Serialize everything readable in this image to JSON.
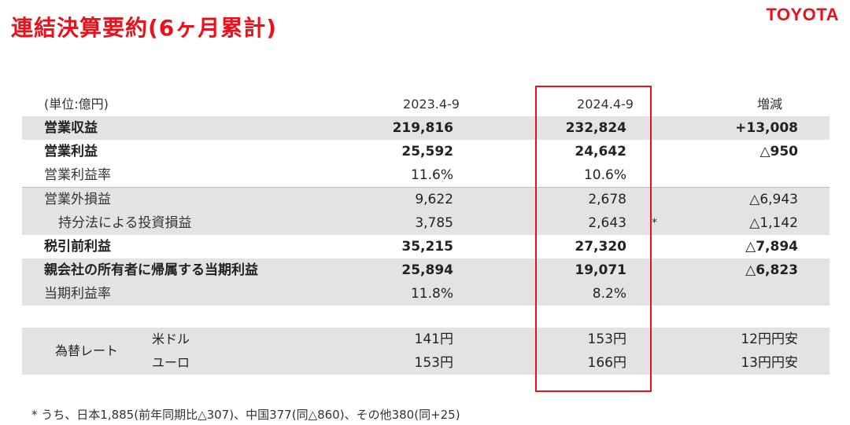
{
  "header": {
    "title": "連結決算要約(6ヶ月累計)",
    "logo": "TOYOTA"
  },
  "table": {
    "unit": "(単位:億円)",
    "col1": "2023.4-9",
    "col2": "2024.4-9",
    "col3": "増減",
    "rows": [
      {
        "label": "営業収益",
        "v1": "219,816",
        "v2": "232,824",
        "v3": "+13,008"
      },
      {
        "label": "営業利益",
        "v1": "25,592",
        "v2": "24,642",
        "v3": "△950"
      },
      {
        "label": "営業利益率",
        "v1": "11.6%",
        "v2": "10.6%",
        "v3": ""
      },
      {
        "label": "営業外損益",
        "v1": "9,622",
        "v2": "2,678",
        "v3": "△6,943"
      },
      {
        "label": "持分法による投資損益",
        "v1": "3,785",
        "v2": "2,643",
        "v3": "△1,142",
        "mark": "*"
      },
      {
        "label": "税引前利益",
        "v1": "35,215",
        "v2": "27,320",
        "v3": "△7,894"
      },
      {
        "label": "親会社の所有者に帰属する当期利益",
        "v1": "25,894",
        "v2": "19,071",
        "v3": "△6,823"
      },
      {
        "label": "当期利益率",
        "v1": "11.8%",
        "v2": "8.2%",
        "v3": ""
      }
    ]
  },
  "fx": {
    "label": "為替レート",
    "rows": [
      {
        "label": "米ドル",
        "v1": "141円",
        "v2": "153円",
        "v3": "12円円安"
      },
      {
        "label": "ユーロ",
        "v1": "153円",
        "v2": "166円",
        "v3": "13円円安"
      }
    ]
  },
  "footnote": "* うち、日本1,885(前年同期比△307)、中国377(同△860)、その他380(同+25)",
  "colors": {
    "accent": "#e8111c",
    "row_shade": "#e3e3e3"
  }
}
